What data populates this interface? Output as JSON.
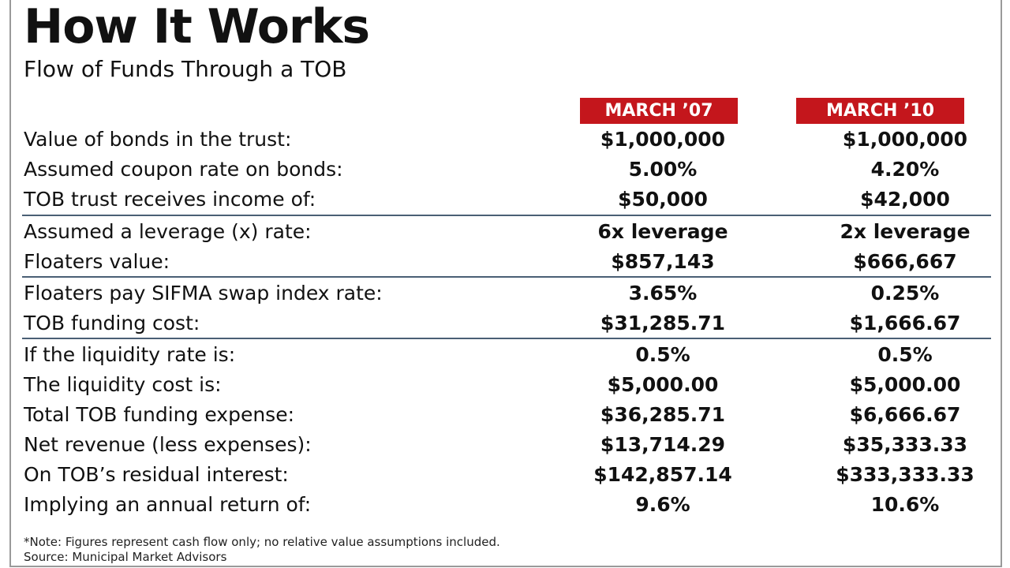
{
  "header": {
    "title": "How It Works",
    "subtitle": "Flow of Funds Through a TOB"
  },
  "columns": [
    "MARCH ’07",
    "MARCH ’10"
  ],
  "colors": {
    "header_band": "#c4161c",
    "divider": "#4a5f75",
    "text": "#111111"
  },
  "rows": [
    {
      "label": "Value of bonds in the trust:",
      "v1": "$1,000,000",
      "v2": "$1,000,000"
    },
    {
      "label": "Assumed coupon rate on bonds:",
      "v1": "5.00%",
      "v2": "4.20%"
    },
    {
      "label": "TOB trust receives income of:",
      "v1": "$50,000",
      "v2": "$42,000"
    },
    {
      "label": "Assumed a leverage (x) rate:",
      "v1": "6x leverage",
      "v2": "2x leverage"
    },
    {
      "label": "Floaters value:",
      "v1": "$857,143",
      "v2": "$666,667"
    },
    {
      "label": "Floaters pay SIFMA swap index rate:",
      "v1": "3.65%",
      "v2": "0.25%"
    },
    {
      "label": "TOB funding cost:",
      "v1": "$31,285.71",
      "v2": "$1,666.67"
    },
    {
      "label": "If the liquidity rate is:",
      "v1": "0.5%",
      "v2": "0.5%"
    },
    {
      "label": "The liquidity cost is:",
      "v1": "$5,000.00",
      "v2": "$5,000.00"
    },
    {
      "label": "Total TOB funding expense:",
      "v1": "$36,285.71",
      "v2": "$6,666.67"
    },
    {
      "label": "Net revenue (less expenses):",
      "v1": "$13,714.29",
      "v2": "$35,333.33"
    },
    {
      "label": "On TOB’s residual interest:",
      "v1": "$142,857.14",
      "v2": "$333,333.33"
    },
    {
      "label": "Implying an annual return of:",
      "v1": "9.6%",
      "v2": "10.6%"
    }
  ],
  "footer": {
    "note": "*Note: Figures represent cash flow only; no relative value assumptions included.",
    "source": "Source: Municipal Market Advisors"
  }
}
